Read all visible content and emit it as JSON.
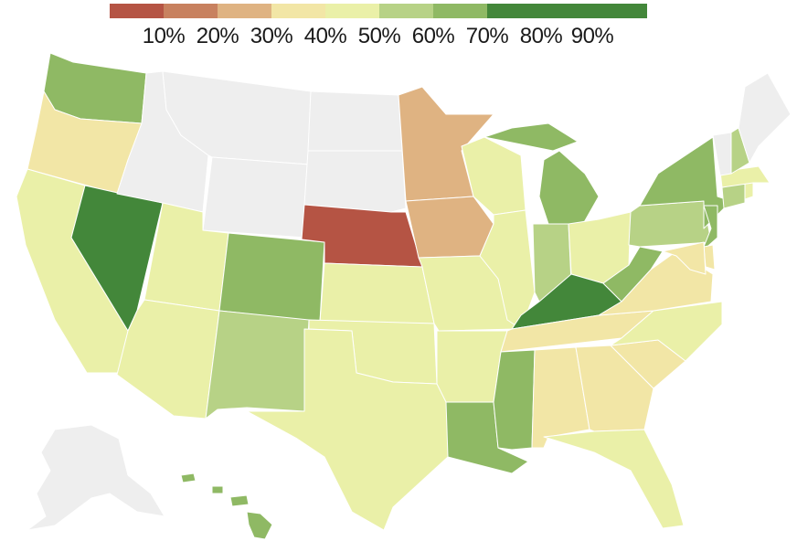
{
  "legend": {
    "colors": [
      "#b55444",
      "#c8815f",
      "#dfb382",
      "#f2e6a6",
      "#eaf0a8",
      "#b7d286",
      "#8fb964",
      "#43873a"
    ],
    "labels": [
      "10%",
      "20%",
      "30%",
      "40%",
      "50%",
      "60%",
      "70%",
      "80%",
      "90%"
    ]
  },
  "no_data_color": "#eeeeee",
  "states": {
    "WA": {
      "bin": 6
    },
    "OR": {
      "bin": 3
    },
    "CA": {
      "bin": 4
    },
    "NV": {
      "bin": 7
    },
    "ID": {
      "bin": -1
    },
    "MT": {
      "bin": -1
    },
    "WY": {
      "bin": -1
    },
    "UT": {
      "bin": 4
    },
    "AZ": {
      "bin": 4
    },
    "CO": {
      "bin": 6
    },
    "NM": {
      "bin": 5
    },
    "ND": {
      "bin": -1
    },
    "SD": {
      "bin": -1
    },
    "NE": {
      "bin": 0
    },
    "KS": {
      "bin": 4
    },
    "OK": {
      "bin": 4
    },
    "TX": {
      "bin": 4
    },
    "MN": {
      "bin": 2
    },
    "IA": {
      "bin": 2
    },
    "MO": {
      "bin": 4
    },
    "AR": {
      "bin": 4
    },
    "LA": {
      "bin": 6
    },
    "WI": {
      "bin": 4
    },
    "IL": {
      "bin": 4
    },
    "MI": {
      "bin": 6
    },
    "IN": {
      "bin": 5
    },
    "OH": {
      "bin": 4
    },
    "KY": {
      "bin": 7
    },
    "TN": {
      "bin": 3
    },
    "MS": {
      "bin": 6
    },
    "AL": {
      "bin": 3
    },
    "GA": {
      "bin": 3
    },
    "FL": {
      "bin": 4
    },
    "SC": {
      "bin": 3
    },
    "NC": {
      "bin": 4
    },
    "VA": {
      "bin": 3
    },
    "WV": {
      "bin": 6
    },
    "PA": {
      "bin": 5
    },
    "NY": {
      "bin": 6
    },
    "NJ": {
      "bin": 6
    },
    "DE": {
      "bin": 3
    },
    "MD": {
      "bin": 3
    },
    "CT": {
      "bin": 5
    },
    "RI": {
      "bin": 4
    },
    "MA": {
      "bin": 4
    },
    "VT": {
      "bin": -1
    },
    "NH": {
      "bin": 5
    },
    "ME": {
      "bin": -1
    },
    "AK": {
      "bin": -1
    },
    "HI": {
      "bin": 6
    }
  }
}
